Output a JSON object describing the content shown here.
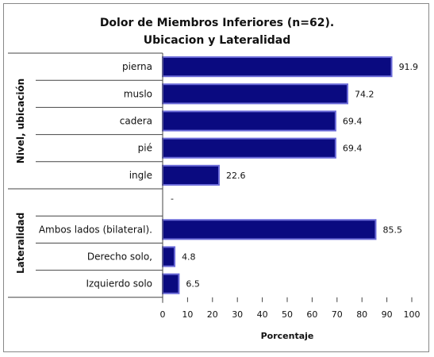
{
  "chart_data": {
    "type": "bar",
    "orientation": "horizontal",
    "title": "Dolor de Miembros Inferiores (n=62).",
    "subtitle": "Ubicacion y Lateralidad",
    "xlabel": "Porcentaje",
    "xlim": [
      0,
      100
    ],
    "xticks": [
      0,
      10,
      20,
      30,
      40,
      50,
      60,
      70,
      80,
      90,
      100
    ],
    "grid": false,
    "bar_color": "#0a0a80",
    "bar_edge_color": "#6b6bd8",
    "groups": [
      {
        "name": "Nivel, ubicación",
        "categories": [
          "pierna",
          "muslo",
          "cadera",
          "pié",
          "ingle"
        ],
        "values": [
          91.9,
          74.2,
          69.4,
          69.4,
          22.6
        ],
        "value_labels": [
          "91.9",
          "74.2",
          "69.4",
          "69.4",
          "22.6"
        ]
      },
      {
        "name": "Lateralidad",
        "categories": [
          "",
          "Ambos lados (bilateral).",
          "Derecho solo,",
          "Izquierdo solo"
        ],
        "values": [
          null,
          85.5,
          4.8,
          6.5
        ],
        "value_labels": [
          "-",
          "85.5",
          "4.8",
          "6.5"
        ]
      }
    ]
  }
}
